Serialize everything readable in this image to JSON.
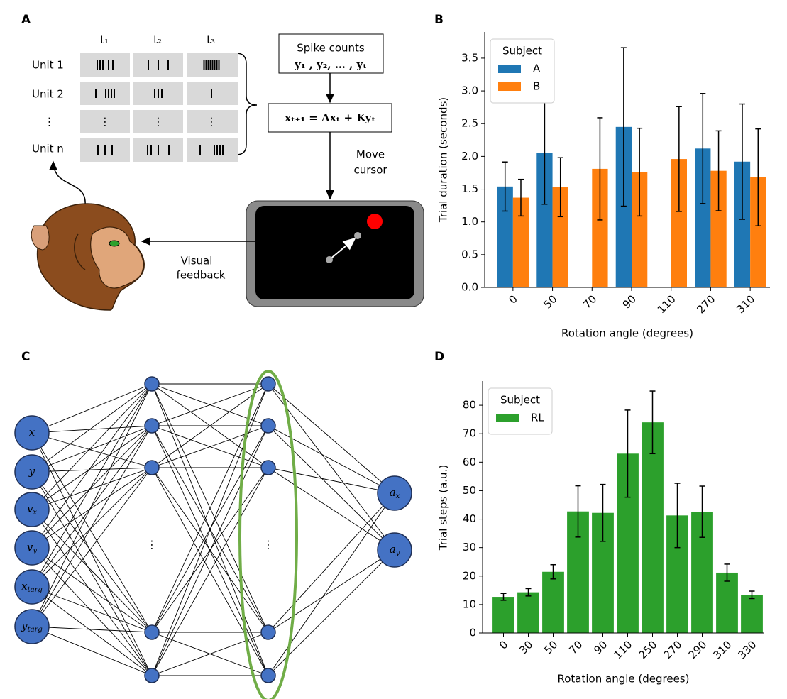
{
  "panel_labels": [
    "A",
    "B",
    "C",
    "D"
  ],
  "diagram_a": {
    "time_labels": [
      "t₁",
      "t₂",
      "t₃"
    ],
    "unit_labels": [
      "Unit 1",
      "Unit 2",
      "⋮",
      "Unit n"
    ],
    "cell_dots": "⋮",
    "spike_box": [
      "Spike counts",
      "y₁ , y₂, … , yₜ"
    ],
    "equation": "xₜ₊₁ = Axₜ + Kyₜ",
    "move_label": [
      "Move",
      "cursor"
    ],
    "feedback_label": [
      "Visual",
      "feedback"
    ]
  },
  "diagram_c": {
    "inputs": [
      {
        "base": "x"
      },
      {
        "base": "y"
      },
      {
        "base": "v",
        "sub": "x"
      },
      {
        "base": "v",
        "sub": "y"
      },
      {
        "base": "x",
        "sub": "targ"
      },
      {
        "base": "y",
        "sub": "targ"
      }
    ],
    "outputs": [
      {
        "base": "a",
        "sub": "x"
      },
      {
        "base": "a",
        "sub": "y"
      }
    ],
    "hidden_dots": "⋮"
  },
  "chart_data": [
    {
      "type": "bar",
      "xlabel": "Rotation angle (degrees)",
      "ylabel": "Trial duration (seconds)",
      "categories": [
        "0",
        "50",
        "70",
        "90",
        "110",
        "270",
        "310"
      ],
      "series": [
        {
          "name": "A",
          "color": "#1f77b4",
          "values": [
            1.54,
            2.05,
            null,
            2.45,
            null,
            2.12,
            1.92
          ],
          "errors": [
            0.375,
            0.78,
            null,
            1.21,
            null,
            0.84,
            0.88
          ]
        },
        {
          "name": "B",
          "color": "#ff7f0e",
          "values": [
            1.37,
            1.53,
            1.81,
            1.76,
            1.96,
            1.78,
            1.68
          ],
          "errors": [
            0.28,
            0.45,
            0.78,
            0.67,
            0.8,
            0.61,
            0.74
          ]
        }
      ],
      "ylim": [
        0,
        3.9
      ],
      "yticks": [
        {
          "value": 0,
          "label": "0.0"
        },
        {
          "value": 0.5,
          "label": "0.5"
        },
        {
          "value": 1,
          "label": "1.0"
        },
        {
          "value": 1.5,
          "label": "1.5"
        },
        {
          "value": 2,
          "label": "2.0"
        },
        {
          "value": 2.5,
          "label": "2.5"
        },
        {
          "value": 3,
          "label": "3.0"
        },
        {
          "value": 3.5,
          "label": "3.5"
        }
      ],
      "legend_title": "Subject",
      "legend": "upper left"
    },
    {
      "type": "bar",
      "xlabel": "Rotation angle (degrees)",
      "ylabel": "Trial steps (a.u.)",
      "categories": [
        "0",
        "30",
        "50",
        "70",
        "90",
        "110",
        "250",
        "270",
        "290",
        "310",
        "330"
      ],
      "series": [
        {
          "name": "RL",
          "color": "#2ca02c",
          "values": [
            12.7,
            14.3,
            21.5,
            42.7,
            42.2,
            63,
            74,
            41.3,
            42.6,
            21.2,
            13.4
          ],
          "errors": [
            1.2,
            1.3,
            2.5,
            9,
            10,
            15.3,
            11,
            11.3,
            9,
            3,
            1.3
          ]
        }
      ],
      "ylim": [
        0,
        88.5
      ],
      "yticks": [
        0,
        10,
        20,
        30,
        40,
        50,
        60,
        70,
        80
      ],
      "legend_title": "Subject",
      "legend": "upper left"
    }
  ]
}
